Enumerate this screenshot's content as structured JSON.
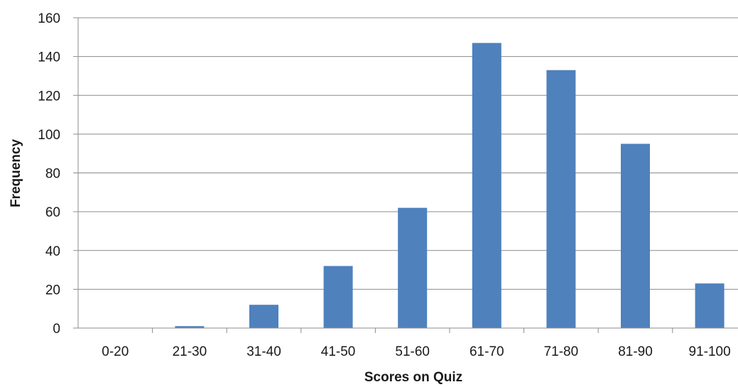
{
  "chart_data": {
    "type": "bar",
    "title": "",
    "xlabel": "Scores on Quiz",
    "ylabel": "Frequency",
    "categories": [
      "0-20",
      "21-30",
      "31-40",
      "41-50",
      "51-60",
      "61-70",
      "71-80",
      "81-90",
      "91-100"
    ],
    "values": [
      0,
      1,
      12,
      32,
      62,
      147,
      133,
      95,
      23
    ],
    "ylim": [
      0,
      160
    ],
    "yticks": [
      0,
      20,
      40,
      60,
      80,
      100,
      120,
      140,
      160
    ],
    "grid": true,
    "legend": "none",
    "bar_color": "#4f81bd",
    "grid_color": "#8c8c8c"
  }
}
